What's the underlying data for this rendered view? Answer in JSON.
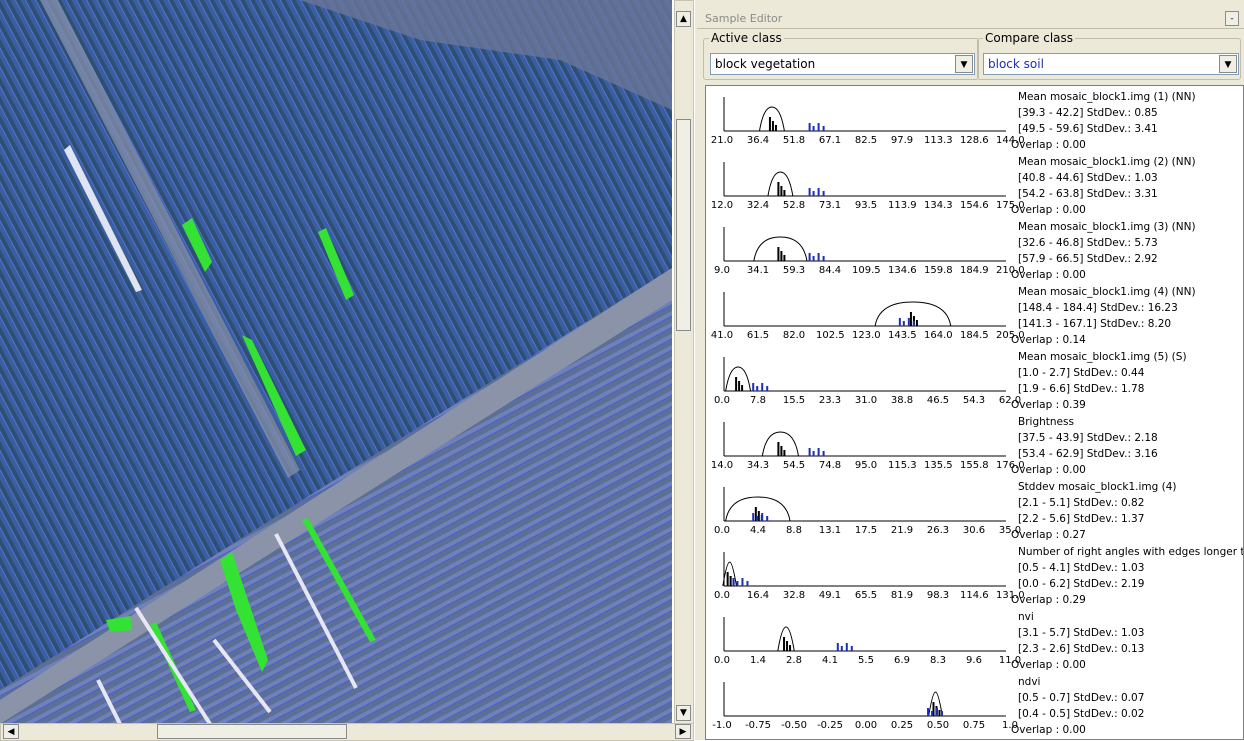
{
  "window": {
    "title": "Sample Editor"
  },
  "active_class": {
    "label": "Active class",
    "value": "block vegetation"
  },
  "compare_class": {
    "label": "Compare class",
    "value": "block soil"
  },
  "features": [
    {
      "name": "Mean mosaic_block1.img (1) (NN)",
      "ticks": [
        "21.0",
        "36.4",
        "51.8",
        "67.1",
        "82.5",
        "97.9",
        "113.3",
        "128.6",
        "144.0"
      ],
      "range1": "[39.3 - 42.2] StdDev.: 0.85",
      "range2": "[49.5 - 59.6] StdDev.: 3.41",
      "overlap": "Overlap : 0.00"
    },
    {
      "name": "Mean mosaic_block1.img (2) (NN)",
      "ticks": [
        "12.0",
        "32.4",
        "52.8",
        "73.1",
        "93.5",
        "113.9",
        "134.3",
        "154.6",
        "175.0"
      ],
      "range1": "[40.8 - 44.6] StdDev.: 1.03",
      "range2": "[54.2 - 63.8] StdDev.: 3.31",
      "overlap": "Overlap : 0.00"
    },
    {
      "name": "Mean mosaic_block1.img (3) (NN)",
      "ticks": [
        "9.0",
        "34.1",
        "59.3",
        "84.4",
        "109.5",
        "134.6",
        "159.8",
        "184.9",
        "210.0"
      ],
      "range1": "[32.6 - 46.8] StdDev.: 5.73",
      "range2": "[57.9 - 66.5] StdDev.: 2.92",
      "overlap": "Overlap : 0.00"
    },
    {
      "name": "Mean mosaic_block1.img (4) (NN)",
      "ticks": [
        "41.0",
        "61.5",
        "82.0",
        "102.5",
        "123.0",
        "143.5",
        "164.0",
        "184.5",
        "205.0"
      ],
      "range1": "[148.4 - 184.4] StdDev.: 16.23",
      "range2": "[141.3 - 167.1] StdDev.: 8.20",
      "overlap": "Overlap : 0.14"
    },
    {
      "name": "Mean mosaic_block1.img (5) (S)",
      "ticks": [
        "0.0",
        "7.8",
        "15.5",
        "23.3",
        "31.0",
        "38.8",
        "46.5",
        "54.3",
        "62.0"
      ],
      "range1": "[1.0 - 2.7] StdDev.: 0.44",
      "range2": "[1.9 - 6.6] StdDev.: 1.78",
      "overlap": "Overlap : 0.39"
    },
    {
      "name": "Brightness",
      "ticks": [
        "14.0",
        "34.3",
        "54.5",
        "74.8",
        "95.0",
        "115.3",
        "135.5",
        "155.8",
        "176.0"
      ],
      "range1": "[37.5 - 43.9] StdDev.: 2.18",
      "range2": "[53.4 - 62.9] StdDev.: 3.16",
      "overlap": "Overlap : 0.00"
    },
    {
      "name": "Stddev mosaic_block1.img (4)",
      "ticks": [
        "0.0",
        "4.4",
        "8.8",
        "13.1",
        "17.5",
        "21.9",
        "26.3",
        "30.6",
        "35.0"
      ],
      "range1": "[2.1 - 5.1] StdDev.: 0.82",
      "range2": "[2.2 - 5.6] StdDev.: 1.37",
      "overlap": "Overlap : 0.27"
    },
    {
      "name": "Number of right angles with edges longer t",
      "ticks": [
        "0.0",
        "16.4",
        "32.8",
        "49.1",
        "65.5",
        "81.9",
        "98.3",
        "114.6",
        "131.0"
      ],
      "range1": "[0.5 - 4.1] StdDev.: 1.03",
      "range2": "[0.0 - 6.2] StdDev.: 2.19",
      "overlap": "Overlap : 0.29"
    },
    {
      "name": "nvi",
      "ticks": [
        "0.0",
        "1.4",
        "2.8",
        "4.1",
        "5.5",
        "6.9",
        "8.3",
        "9.6",
        "11.0"
      ],
      "range1": "[3.1 - 5.7] StdDev.: 1.03",
      "range2": "[2.3 - 2.6] StdDev.: 0.13",
      "overlap": "Overlap : 0.00"
    },
    {
      "name": "ndvi",
      "ticks": [
        "-1.0",
        "-0.75",
        "-0.50",
        "-0.25",
        "0.00",
        "0.25",
        "0.50",
        "0.75",
        "1.0"
      ],
      "range1": "[0.5 - 0.7] StdDev.: 0.07",
      "range2": "[0.4 - 0.5] StdDev.: 0.02",
      "overlap": "Overlap : 0.00"
    }
  ]
}
